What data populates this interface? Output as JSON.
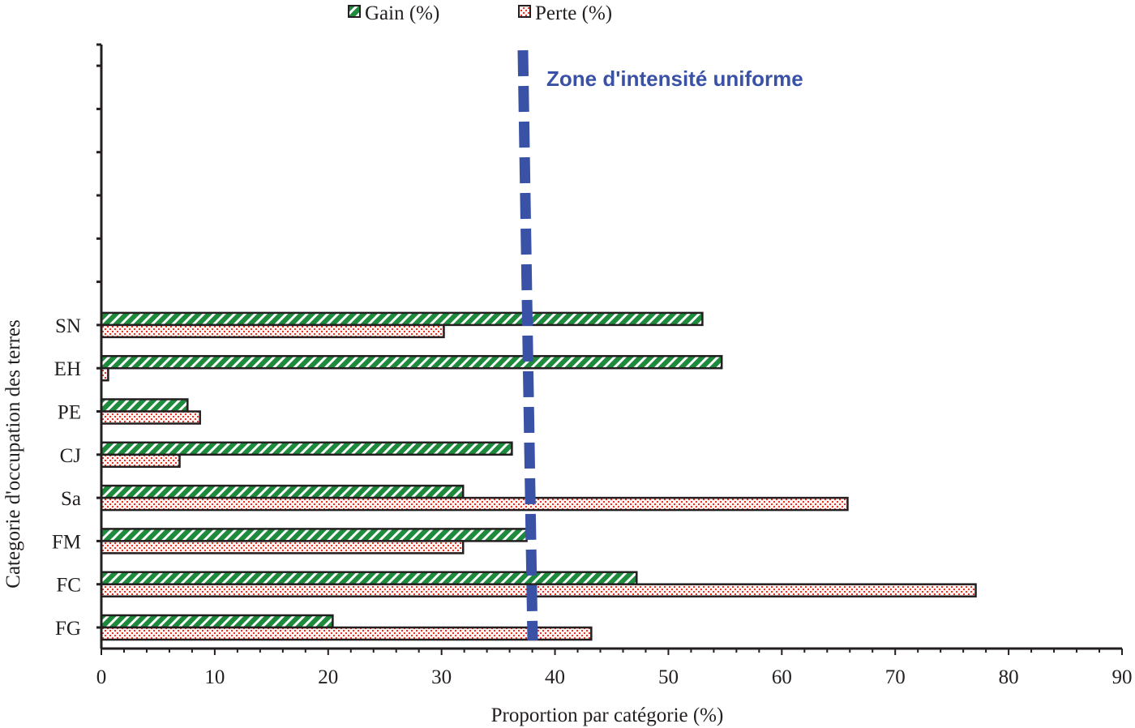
{
  "chart_data": {
    "type": "bar",
    "orientation": "horizontal",
    "categories": [
      "FG",
      "FC",
      "FM",
      "Sa",
      "CJ",
      "PE",
      "EH",
      "SN"
    ],
    "series": [
      {
        "name": "Gain (%)",
        "color": "#1e8a3c",
        "pattern": "diagonal-stripes",
        "values": [
          20.4,
          47.2,
          37.5,
          31.9,
          36.2,
          7.6,
          54.7,
          53.0
        ]
      },
      {
        "name": "Perte (%)",
        "color": "#e8322a",
        "pattern": "dots",
        "values": [
          43.2,
          77.1,
          31.9,
          65.8,
          6.9,
          8.7,
          0.6,
          30.2
        ]
      }
    ],
    "xlabel": "Proportion par catégorie (%)",
    "ylabel": "Categorie d'occupation des terres",
    "xlim": [
      0,
      90
    ],
    "xticks": [
      0,
      10,
      20,
      30,
      40,
      50,
      60,
      70,
      80,
      90
    ],
    "legend_position": "top",
    "annotation": {
      "label": "Zone d'intensité uniforme",
      "value": 37.6,
      "color": "#3a52a6",
      "style": "dashed-vertical-line"
    }
  }
}
